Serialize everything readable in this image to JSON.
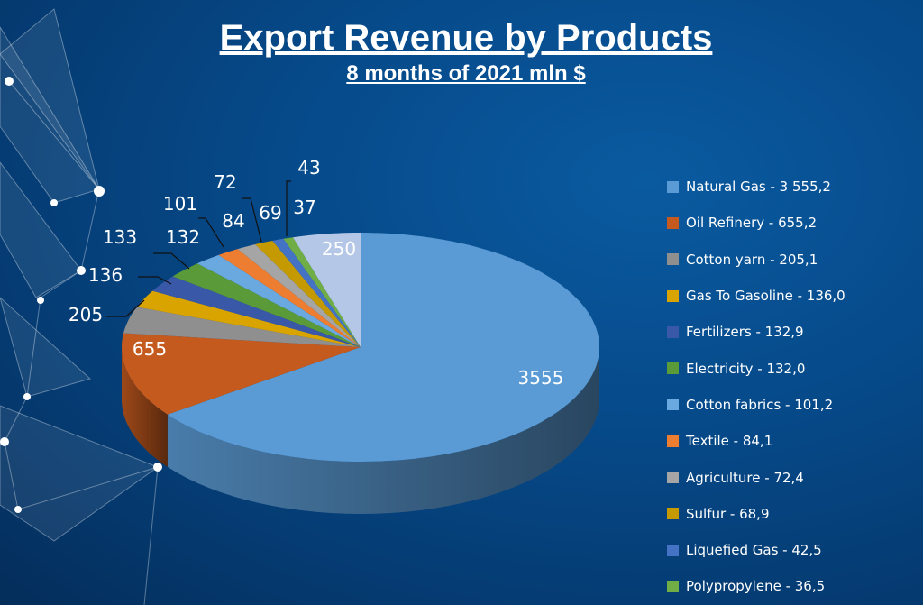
{
  "title": "Export Revenue by Products",
  "subtitle": "8 months of 2021 mln $",
  "chart_data": {
    "type": "pie",
    "style": "3d",
    "legend_position": "right",
    "slices": [
      {
        "name": "Natural Gas",
        "legend": "Natural Gas - 3 555,2",
        "value": 3555.2,
        "label": "3555",
        "color": "#5b9bd5"
      },
      {
        "name": "Oil Refinery",
        "legend": "Oil Refinery - 655,2",
        "value": 655.2,
        "label": "655",
        "color": "#c55a1e"
      },
      {
        "name": "Cotton yarn",
        "legend": "Cotton yarn - 205,1",
        "value": 205.1,
        "label": "205",
        "color": "#8f8f8f"
      },
      {
        "name": "Gas To Gasoline",
        "legend": "Gas To Gasoline - 136,0",
        "value": 136.0,
        "label": "136",
        "color": "#d9a300"
      },
      {
        "name": "Fertilizers",
        "legend": "Fertilizers - 132,9",
        "value": 132.9,
        "label": "133",
        "color": "#3a58a8"
      },
      {
        "name": "Electricity",
        "legend": "Electricity - 132,0",
        "value": 132.0,
        "label": "132",
        "color": "#5a9a38"
      },
      {
        "name": "Cotton fabrics",
        "legend": "Cotton fabrics - 101,2",
        "value": 101.2,
        "label": "101",
        "color": "#6aa8e0"
      },
      {
        "name": "Textile",
        "legend": "Textile - 84,1",
        "value": 84.1,
        "label": "84",
        "color": "#ed7d31"
      },
      {
        "name": "Agriculture",
        "legend": "Agriculture - 72,4",
        "value": 72.4,
        "label": "72",
        "color": "#a5a5a5"
      },
      {
        "name": "Sulfur",
        "legend": "Sulfur - 68,9",
        "value": 68.9,
        "label": "69",
        "color": "#c49a00"
      },
      {
        "name": "Liquefied Gas",
        "legend": "Liquefied Gas - 42,5",
        "value": 42.5,
        "label": "43",
        "color": "#4472c4"
      },
      {
        "name": "Polypropylene",
        "legend": "Polypropylene - 36,5",
        "value": 36.5,
        "label": "37",
        "color": "#70ad47"
      },
      {
        "value": 250,
        "label": "250",
        "color": "#b4c7e7"
      }
    ]
  }
}
